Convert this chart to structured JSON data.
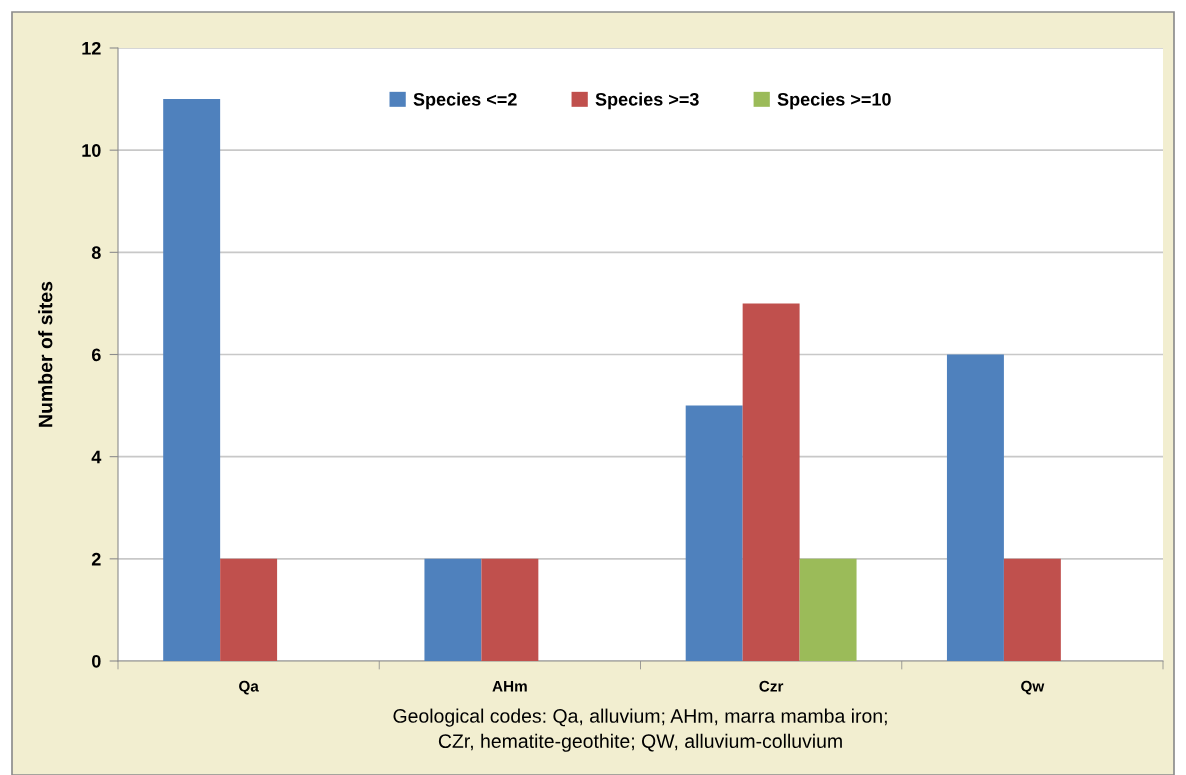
{
  "chart_data": {
    "type": "bar",
    "categories": [
      "Qa",
      "AHm",
      "Czr",
      "Qw"
    ],
    "series": [
      {
        "name": "Species <=2",
        "color": "#4f81bd",
        "values": [
          11,
          2,
          5,
          6
        ]
      },
      {
        "name": "Species >=3",
        "color": "#c0504d",
        "values": [
          2,
          2,
          7,
          2
        ]
      },
      {
        "name": "Species >=10",
        "color": "#9bbb59",
        "values": [
          null,
          null,
          2,
          null
        ]
      }
    ],
    "ylabel": "Number of sites",
    "xlabel": "Geological codes: Qa, alluvium; AHm, marra mamba iron;\nCZr, hematite-geothite; QW, alluvium-colluvium",
    "ylim": [
      0,
      12
    ],
    "yticks": [
      0,
      2,
      4,
      6,
      8,
      10,
      12
    ],
    "grid": "y",
    "legend": "top"
  }
}
